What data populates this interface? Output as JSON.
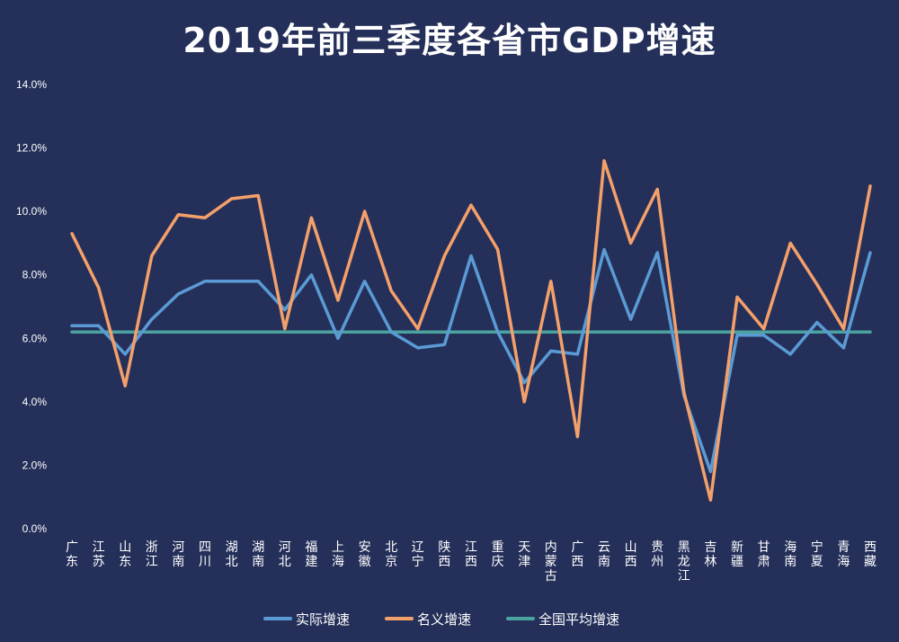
{
  "chart_data": {
    "type": "line",
    "title": "2019年前三季度各省市GDP增速",
    "ylim": [
      0,
      14
    ],
    "yticks": [
      "0.0%",
      "2.0%",
      "4.0%",
      "6.0%",
      "8.0%",
      "10.0%",
      "12.0%",
      "14.0%"
    ],
    "grid": false,
    "legend_position": "bottom",
    "categories": [
      "广东",
      "江苏",
      "山东",
      "浙江",
      "河南",
      "四川",
      "湖北",
      "湖南",
      "河北",
      "福建",
      "上海",
      "安徽",
      "北京",
      "辽宁",
      "陕西",
      "江西",
      "重庆",
      "天津",
      "内蒙古",
      "广西",
      "云南",
      "山西",
      "贵州",
      "黑龙江",
      "吉林",
      "新疆",
      "甘肃",
      "海南",
      "宁夏",
      "青海",
      "西藏"
    ],
    "series": [
      {
        "name": "实际增速",
        "color": "#5b9bd5",
        "values": [
          6.4,
          6.4,
          5.5,
          6.6,
          7.4,
          7.8,
          7.8,
          7.8,
          6.9,
          8.0,
          6.0,
          7.8,
          6.2,
          5.7,
          5.8,
          8.6,
          6.2,
          4.6,
          5.6,
          5.5,
          8.8,
          6.6,
          8.7,
          4.2,
          1.8,
          6.1,
          6.1,
          5.5,
          6.5,
          5.7,
          8.7
        ]
      },
      {
        "name": "名义增速",
        "color": "#f4a06a",
        "values": [
          9.3,
          7.6,
          4.5,
          8.6,
          9.9,
          9.8,
          10.4,
          10.5,
          6.3,
          9.8,
          7.2,
          10.0,
          7.5,
          6.3,
          8.6,
          10.2,
          8.8,
          4.0,
          7.8,
          2.9,
          11.6,
          9.0,
          10.7,
          4.3,
          0.9,
          7.3,
          6.3,
          9.0,
          7.7,
          6.3,
          10.8
        ]
      },
      {
        "name": "全国平均增速",
        "color": "#4ba3a0",
        "values": [
          6.2,
          6.2,
          6.2,
          6.2,
          6.2,
          6.2,
          6.2,
          6.2,
          6.2,
          6.2,
          6.2,
          6.2,
          6.2,
          6.2,
          6.2,
          6.2,
          6.2,
          6.2,
          6.2,
          6.2,
          6.2,
          6.2,
          6.2,
          6.2,
          6.2,
          6.2,
          6.2,
          6.2,
          6.2,
          6.2,
          6.2
        ]
      }
    ]
  }
}
